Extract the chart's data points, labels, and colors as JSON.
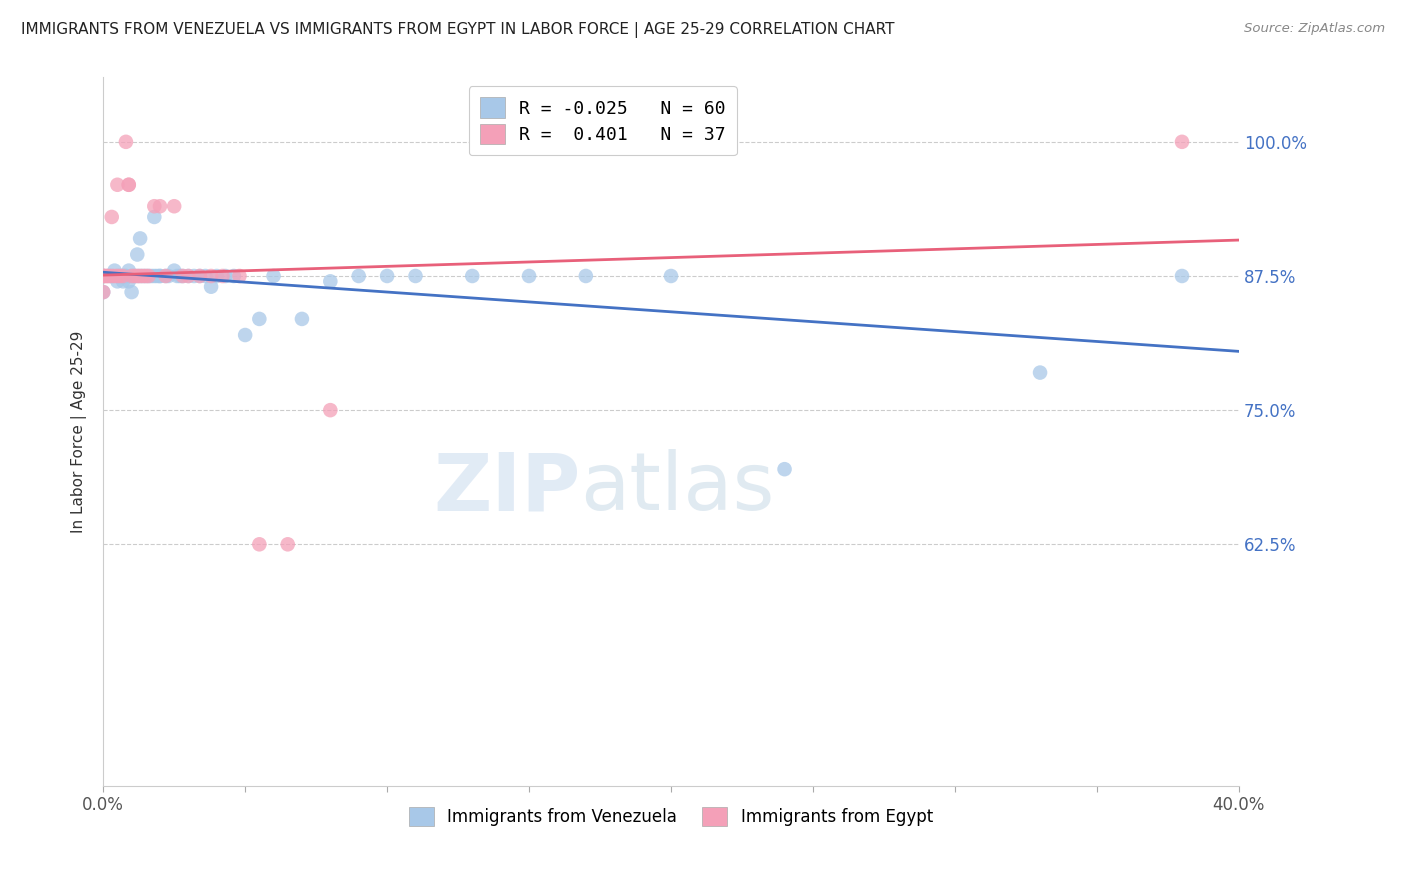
{
  "title": "IMMIGRANTS FROM VENEZUELA VS IMMIGRANTS FROM EGYPT IN LABOR FORCE | AGE 25-29 CORRELATION CHART",
  "source": "Source: ZipAtlas.com",
  "ylabel": "In Labor Force | Age 25-29",
  "y_tick_labels": [
    "100.0%",
    "87.5%",
    "75.0%",
    "62.5%"
  ],
  "y_tick_positions": [
    1.0,
    0.875,
    0.75,
    0.625
  ],
  "xlim": [
    0.0,
    0.4
  ],
  "ylim": [
    0.4,
    1.06
  ],
  "legend_r_blue": "-0.025",
  "legend_n_blue": "60",
  "legend_r_pink": "0.401",
  "legend_n_pink": "37",
  "blue_color": "#a8c8e8",
  "pink_color": "#f4a0b8",
  "blue_line_color": "#4472c4",
  "pink_line_color": "#e8607a",
  "title_color": "#222222",
  "axis_label_color": "#333333",
  "tick_label_color_y": "#4472c4",
  "watermark_zip": "ZIP",
  "watermark_atlas": "atlas",
  "legend1_label": "Immigrants from Venezuela",
  "legend2_label": "Immigrants from Egypt",
  "venezuela_x": [
    0.0,
    0.0,
    0.0,
    0.002,
    0.003,
    0.004,
    0.005,
    0.005,
    0.006,
    0.007,
    0.007,
    0.008,
    0.008,
    0.009,
    0.009,
    0.01,
    0.01,
    0.011,
    0.012,
    0.012,
    0.013,
    0.013,
    0.014,
    0.015,
    0.016,
    0.017,
    0.018,
    0.018,
    0.019,
    0.02,
    0.02,
    0.022,
    0.023,
    0.025,
    0.026,
    0.027,
    0.028,
    0.03,
    0.032,
    0.034,
    0.036,
    0.038,
    0.04,
    0.043,
    0.046,
    0.05,
    0.055,
    0.06,
    0.07,
    0.08,
    0.09,
    0.1,
    0.11,
    0.13,
    0.15,
    0.17,
    0.2,
    0.24,
    0.33,
    0.38
  ],
  "venezuela_y": [
    0.875,
    0.875,
    0.86,
    0.875,
    0.875,
    0.88,
    0.875,
    0.87,
    0.875,
    0.875,
    0.87,
    0.875,
    0.875,
    0.88,
    0.87,
    0.875,
    0.86,
    0.875,
    0.875,
    0.895,
    0.875,
    0.91,
    0.875,
    0.875,
    0.875,
    0.875,
    0.875,
    0.93,
    0.875,
    0.875,
    0.875,
    0.875,
    0.875,
    0.88,
    0.875,
    0.875,
    0.875,
    0.875,
    0.875,
    0.875,
    0.875,
    0.865,
    0.875,
    0.875,
    0.875,
    0.82,
    0.835,
    0.875,
    0.835,
    0.87,
    0.875,
    0.875,
    0.875,
    0.875,
    0.875,
    0.875,
    0.875,
    0.695,
    0.785,
    0.875
  ],
  "egypt_x": [
    0.0,
    0.0,
    0.0,
    0.001,
    0.001,
    0.002,
    0.003,
    0.003,
    0.004,
    0.005,
    0.005,
    0.006,
    0.007,
    0.008,
    0.009,
    0.009,
    0.01,
    0.011,
    0.012,
    0.013,
    0.014,
    0.015,
    0.016,
    0.018,
    0.02,
    0.022,
    0.025,
    0.028,
    0.03,
    0.034,
    0.038,
    0.042,
    0.048,
    0.055,
    0.065,
    0.08,
    0.38
  ],
  "egypt_y": [
    0.875,
    0.875,
    0.86,
    0.875,
    0.875,
    0.875,
    0.93,
    0.875,
    0.875,
    0.96,
    0.875,
    0.875,
    0.875,
    1.0,
    0.96,
    0.96,
    0.875,
    0.875,
    0.875,
    0.875,
    0.875,
    0.875,
    0.875,
    0.94,
    0.94,
    0.875,
    0.94,
    0.875,
    0.875,
    0.875,
    0.875,
    0.875,
    0.875,
    0.625,
    0.625,
    0.75,
    1.0
  ]
}
